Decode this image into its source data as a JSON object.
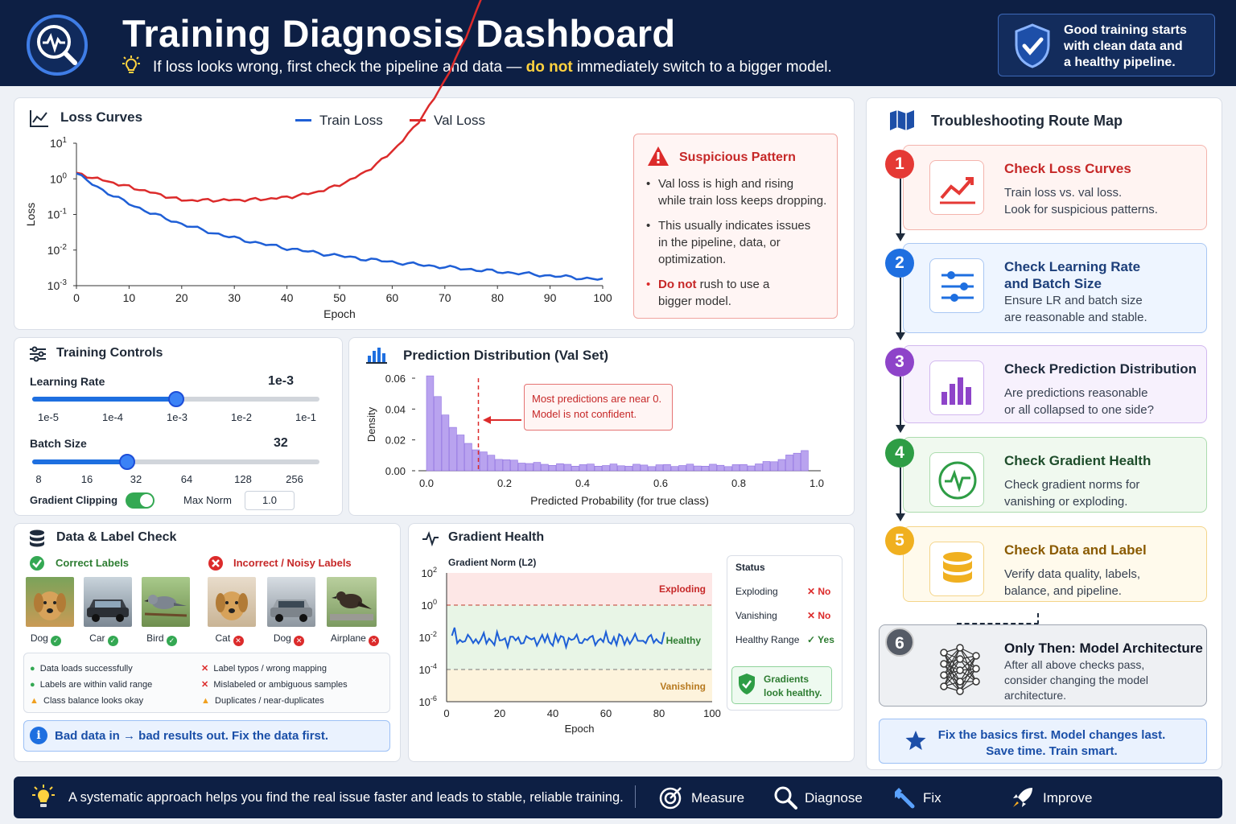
{
  "header": {
    "title": "Training Diagnosis Dashboard",
    "subtitle_pre": "If loss looks wrong, first check the pipeline and data —",
    "subtitle_hl": "do not",
    "subtitle_post": "immediately switch to a bigger model.",
    "tip_line1": "Good training starts",
    "tip_line2": "with clean data and",
    "tip_line3": "a healthy pipeline."
  },
  "loss_card": {
    "title": "Loss Curves",
    "legend_train": "Train Loss",
    "legend_val": "Val Loss",
    "ylabel": "Loss",
    "xlabel": "Epoch",
    "xticks": [
      "0",
      "10",
      "20",
      "30",
      "40",
      "50",
      "60",
      "70",
      "80",
      "90",
      "100"
    ],
    "yticks": [
      {
        "b": "10",
        "e": "1"
      },
      {
        "b": "10",
        "e": "0"
      },
      {
        "b": "10",
        "e": "-1"
      },
      {
        "b": "10",
        "e": "-2"
      },
      {
        "b": "10",
        "e": "-3"
      }
    ],
    "warn_title": "Suspicious Pattern",
    "warn_b1a": "Val loss is high and rising",
    "warn_b1b": "while train loss keeps dropping.",
    "warn_b2a": "This usually indicates issues",
    "warn_b2b": "in the pipeline, data, or",
    "warn_b2c": "optimization.",
    "warn_b3_hl": "Do not",
    "warn_b3a": "rush to use a",
    "warn_b3b": "bigger model."
  },
  "controls": {
    "title": "Training Controls",
    "lr_label": "Learning Rate",
    "lr_value": "1e-3",
    "lr_ticks": [
      "1e-5",
      "1e-4",
      "1e-3",
      "1e-2",
      "1e-1"
    ],
    "lr_position": 0.5,
    "bs_label": "Batch Size",
    "bs_value": "32",
    "bs_ticks": [
      "8",
      "16",
      "32",
      "64",
      "128",
      "256"
    ],
    "bs_position": 0.33,
    "clip_label": "Gradient Clipping",
    "clip_on": true,
    "maxnorm_label": "Max Norm",
    "maxnorm_value": "1.0"
  },
  "pred": {
    "title": "Prediction Distribution (Val Set)",
    "ylabel": "Density",
    "xlabel": "Predicted Probability (for true class)",
    "yticks": [
      "0.06",
      "0.04",
      "0.02",
      "0.00"
    ],
    "xticks": [
      "0.0",
      "0.2",
      "0.4",
      "0.6",
      "0.8",
      "1.0"
    ],
    "note1": "Most predictions are near 0.",
    "note2": "Model is not confident."
  },
  "data_check": {
    "title": "Data & Label Check",
    "correct_label": "Correct Labels",
    "incorrect_label": "Incorrect / Noisy Labels",
    "correct_items": [
      "Dog",
      "Car",
      "Bird"
    ],
    "incorrect_items": [
      "Cat",
      "Dog",
      "Airplane"
    ],
    "ok1": "Data loads successfully",
    "ok2": "Labels are within valid range",
    "warn1": "Class balance looks okay",
    "bad1": "Label typos / wrong mapping",
    "bad2": "Mislabeled or ambiguous samples",
    "warn2": "Duplicates / near-duplicates",
    "info": "Bad data in → bad results out. Fix the data first."
  },
  "gradient": {
    "title": "Gradient Health",
    "subtitle": "Gradient Norm (L2)",
    "xlabel": "Epoch",
    "xticks": [
      "0",
      "20",
      "40",
      "60",
      "80",
      "100"
    ],
    "yticks": [
      {
        "b": "10",
        "e": "2"
      },
      {
        "b": "10",
        "e": "0"
      },
      {
        "b": "10",
        "e": "-2"
      },
      {
        "b": "10",
        "e": "-4"
      },
      {
        "b": "10",
        "e": "-6"
      }
    ],
    "zone_exploding": "Exploding",
    "zone_healthy": "Healthy",
    "zone_vanishing": "Vanishing",
    "status_title": "Status",
    "s1": "Exploding",
    "s1v": "No",
    "s2": "Vanishing",
    "s2v": "No",
    "s3": "Healthy Range",
    "s3v": "Yes",
    "badge1": "Gradients",
    "badge2": "look healthy."
  },
  "route": {
    "title": "Troubleshooting Route Map",
    "steps": [
      {
        "n": "1",
        "title1": "Check Loss Curves",
        "title2": "",
        "d1": "Train loss vs. val loss.",
        "d2": "Look for suspicious patterns.",
        "d3": ""
      },
      {
        "n": "2",
        "title1": "Check Learning Rate",
        "title2": "and Batch Size",
        "d1": "Ensure LR and batch size",
        "d2": "are reasonable and stable.",
        "d3": ""
      },
      {
        "n": "3",
        "title1": "Check Prediction Distribution",
        "title2": "",
        "d1": "Are predictions reasonable",
        "d2": "or all collapsed to one side?",
        "d3": ""
      },
      {
        "n": "4",
        "title1": "Check Gradient Health",
        "title2": "",
        "d1": "Check gradient norms for",
        "d2": "vanishing or exploding.",
        "d3": ""
      },
      {
        "n": "5",
        "title1": "Check Data and Label",
        "title2": "",
        "d1": "Verify data quality, labels,",
        "d2": "balance, and pipeline.",
        "d3": ""
      },
      {
        "n": "6",
        "title1": "Only Then: Model Architecture",
        "title2": "",
        "d1": "After all above checks pass,",
        "d2": "consider changing the model",
        "d3": "architecture."
      }
    ],
    "final1": "Fix the basics first. Model changes last.",
    "final2": "Save time. Train smart."
  },
  "footer": {
    "text": "A systematic approach helps you find the real issue faster and leads to stable, reliable training.",
    "items": [
      "Measure",
      "Diagnose",
      "Fix",
      "Improve"
    ]
  },
  "colors": {
    "train": "#1f5fd6",
    "val": "#dc2b2b",
    "navy": "#0d1f44",
    "step1": "#e53935",
    "step2": "#1e6fe0",
    "step3": "#8e44c9",
    "step4": "#2e9d45",
    "step5": "#f0b020",
    "step6": "#555b66"
  }
}
